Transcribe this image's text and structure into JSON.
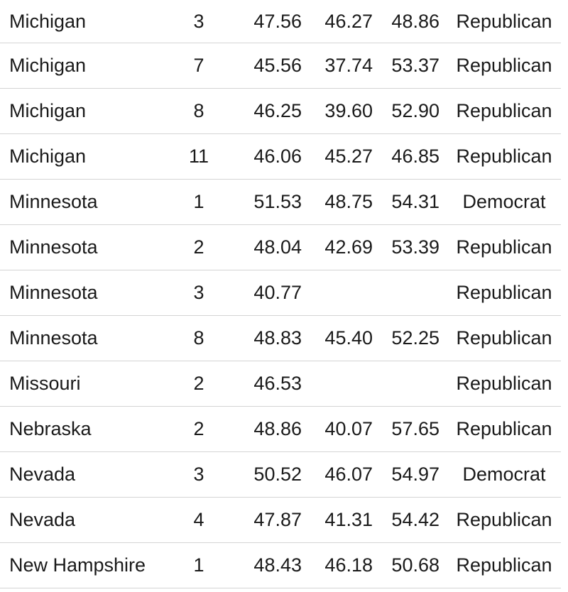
{
  "table": {
    "rows": [
      {
        "state": "Michigan",
        "district": "3",
        "mean": "47.56",
        "low": "46.27",
        "high": "48.86",
        "party": "Republican"
      },
      {
        "state": "Michigan",
        "district": "7",
        "mean": "45.56",
        "low": "37.74",
        "high": "53.37",
        "party": "Republican"
      },
      {
        "state": "Michigan",
        "district": "8",
        "mean": "46.25",
        "low": "39.60",
        "high": "52.90",
        "party": "Republican"
      },
      {
        "state": "Michigan",
        "district": "11",
        "mean": "46.06",
        "low": "45.27",
        "high": "46.85",
        "party": "Republican"
      },
      {
        "state": "Minnesota",
        "district": "1",
        "mean": "51.53",
        "low": "48.75",
        "high": "54.31",
        "party": "Democrat"
      },
      {
        "state": "Minnesota",
        "district": "2",
        "mean": "48.04",
        "low": "42.69",
        "high": "53.39",
        "party": "Republican"
      },
      {
        "state": "Minnesota",
        "district": "3",
        "mean": "40.77",
        "low": "",
        "high": "",
        "party": "Republican"
      },
      {
        "state": "Minnesota",
        "district": "8",
        "mean": "48.83",
        "low": "45.40",
        "high": "52.25",
        "party": "Republican"
      },
      {
        "state": "Missouri",
        "district": "2",
        "mean": "46.53",
        "low": "",
        "high": "",
        "party": "Republican"
      },
      {
        "state": "Nebraska",
        "district": "2",
        "mean": "48.86",
        "low": "40.07",
        "high": "57.65",
        "party": "Republican"
      },
      {
        "state": "Nevada",
        "district": "3",
        "mean": "50.52",
        "low": "46.07",
        "high": "54.97",
        "party": "Democrat"
      },
      {
        "state": "Nevada",
        "district": "4",
        "mean": "47.87",
        "low": "41.31",
        "high": "54.42",
        "party": "Republican"
      },
      {
        "state": "New Hampshire",
        "district": "1",
        "mean": "48.43",
        "low": "46.18",
        "high": "50.68",
        "party": "Republican"
      }
    ]
  }
}
